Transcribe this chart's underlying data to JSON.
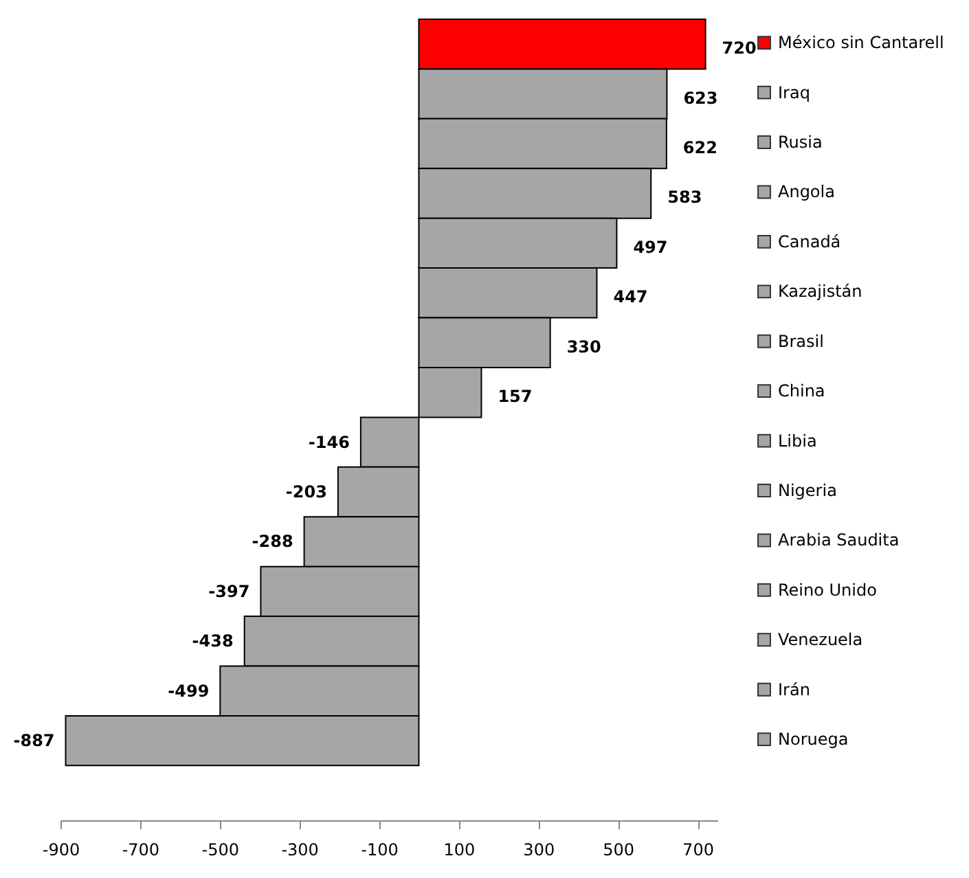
{
  "chart_data": {
    "type": "bar",
    "orientation": "horizontal",
    "categories": [
      "México sin Cantarell",
      "Iraq",
      "Rusia",
      "Angola",
      "Canadá",
      "Kazajistán",
      "Brasil",
      "China",
      "Libia",
      "Nigeria",
      "Arabia Saudita",
      "Reino Unido",
      "Venezuela",
      "Irán",
      "Noruega"
    ],
    "values": [
      720,
      623,
      622,
      583,
      497,
      447,
      330,
      157,
      -146,
      -203,
      -288,
      -397,
      -438,
      -499,
      -887
    ],
    "colors": [
      "#ff0000",
      "#a6a6a6",
      "#a6a6a6",
      "#a6a6a6",
      "#a6a6a6",
      "#a6a6a6",
      "#a6a6a6",
      "#a6a6a6",
      "#a6a6a6",
      "#a6a6a6",
      "#a6a6a6",
      "#a6a6a6",
      "#a6a6a6",
      "#a6a6a6",
      "#a6a6a6"
    ],
    "xlim": [
      -900,
      750
    ],
    "xticks": [
      -900,
      -700,
      -500,
      -300,
      -100,
      100,
      300,
      500,
      700
    ],
    "data_labels": true,
    "grid": false
  }
}
